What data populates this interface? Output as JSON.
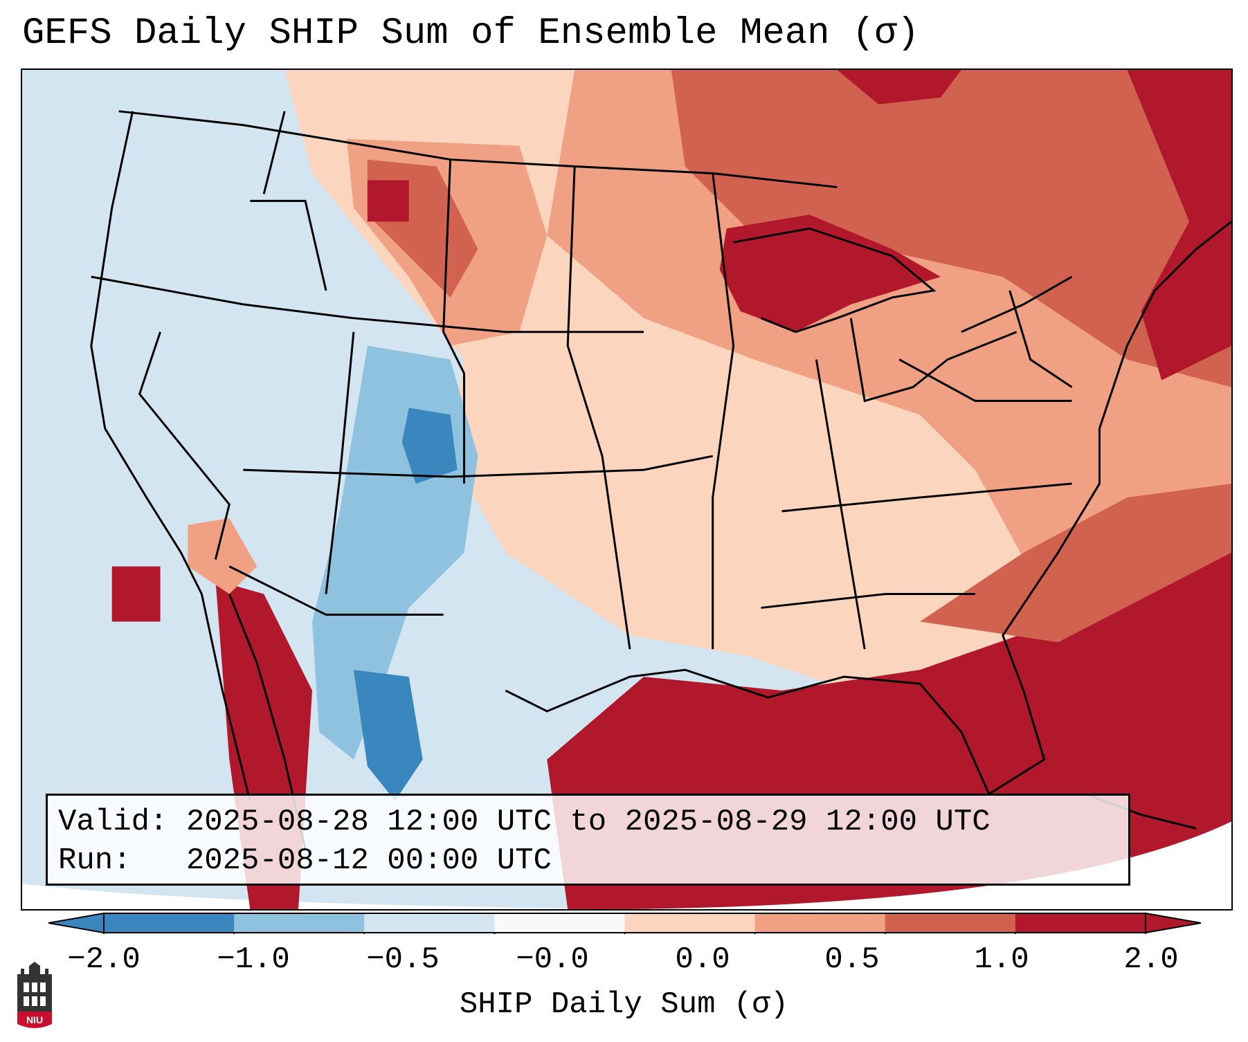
{
  "title": "GEFS Daily SHIP Sum of Ensemble Mean (σ)",
  "valid_box": {
    "valid_label": "Valid:",
    "valid_value": "2025-08-28 12:00 UTC to 2025-08-29 12:00 UTC",
    "run_label": "Run:",
    "run_value": "2025-08-12 00:00 UTC"
  },
  "colorbar": {
    "label": "SHIP Daily Sum (σ)",
    "ticks": [
      "−2.0",
      "−1.0",
      "−0.5",
      "−0.0",
      "0.0",
      "0.5",
      "1.0",
      "2.0"
    ],
    "colors": [
      "#3a87c0",
      "#8ec2df",
      "#d2e5f0",
      "#f9f9f9",
      "#fcd5bf",
      "#f0a083",
      "#d0624f",
      "#b2182b"
    ],
    "extend": "both"
  },
  "legend_colors": {
    "strong_negative": "#3a87c0",
    "moderate_negative": "#8ec2df",
    "weak_negative": "#d2e5f0",
    "weak_positive": "#fcd5bf",
    "moderate_positive": "#f0a083",
    "strong_positive": "#d0624f",
    "extreme_positive": "#b2182b"
  },
  "logo": {
    "text": "NIU",
    "color": "#c8102e"
  }
}
